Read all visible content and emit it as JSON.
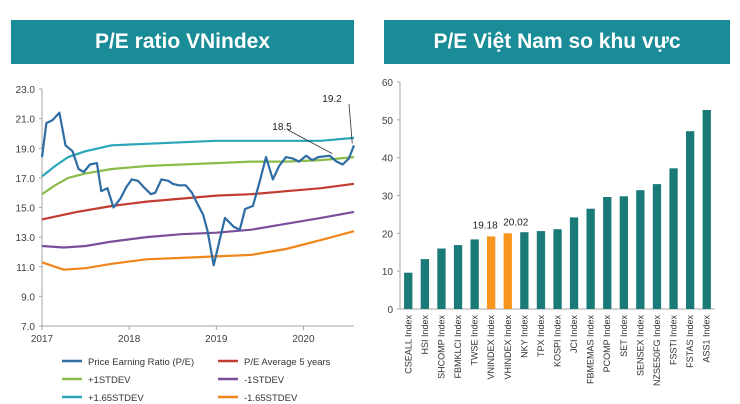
{
  "left_panel": {
    "title": "P/E ratio VNindex"
  },
  "right_panel": {
    "title": "P/E Việt Nam so khu vực"
  },
  "chart_data": [
    {
      "type": "line",
      "title": "P/E ratio VNindex",
      "x_ticks": [
        "2017",
        "2018",
        "2019",
        "2020"
      ],
      "x_tick_values": [
        2017,
        2018,
        2019,
        2020
      ],
      "xlim": [
        2017,
        2020.58
      ],
      "ylim": [
        7.0,
        23.0
      ],
      "y_ticks": [
        "23.0",
        "21.0",
        "19.0",
        "17.0",
        "15.0",
        "13.0",
        "11.0",
        "9.0",
        "7.0"
      ],
      "y_tick_values": [
        23,
        21,
        19,
        17,
        15,
        13,
        11,
        9,
        7
      ],
      "annotations": [
        {
          "text": "18.5",
          "x": 2020.33,
          "y": 18.5
        },
        {
          "text": "19.2",
          "x": 2020.56,
          "y": 19.2
        }
      ],
      "series": [
        {
          "name": "Price Earning Ratio (P/E)",
          "color": "#2e6ca4",
          "points": [
            [
              2017.0,
              18.4
            ],
            [
              2017.05,
              20.7
            ],
            [
              2017.12,
              20.9
            ],
            [
              2017.2,
              21.4
            ],
            [
              2017.27,
              19.2
            ],
            [
              2017.35,
              18.8
            ],
            [
              2017.42,
              17.6
            ],
            [
              2017.48,
              17.4
            ],
            [
              2017.55,
              17.9
            ],
            [
              2017.63,
              18.0
            ],
            [
              2017.68,
              16.1
            ],
            [
              2017.75,
              16.3
            ],
            [
              2017.82,
              15.0
            ],
            [
              2017.9,
              15.6
            ],
            [
              2017.97,
              16.4
            ],
            [
              2018.03,
              16.9
            ],
            [
              2018.1,
              16.8
            ],
            [
              2018.18,
              16.3
            ],
            [
              2018.25,
              15.9
            ],
            [
              2018.3,
              16.0
            ],
            [
              2018.37,
              16.9
            ],
            [
              2018.45,
              16.8
            ],
            [
              2018.5,
              16.6
            ],
            [
              2018.57,
              16.5
            ],
            [
              2018.65,
              16.5
            ],
            [
              2018.72,
              16.0
            ],
            [
              2018.78,
              15.3
            ],
            [
              2018.85,
              14.5
            ],
            [
              2018.9,
              13.4
            ],
            [
              2018.97,
              11.1
            ],
            [
              2019.03,
              12.6
            ],
            [
              2019.1,
              14.3
            ],
            [
              2019.2,
              13.7
            ],
            [
              2019.27,
              13.5
            ],
            [
              2019.33,
              14.9
            ],
            [
              2019.42,
              15.1
            ],
            [
              2019.5,
              16.8
            ],
            [
              2019.57,
              18.4
            ],
            [
              2019.65,
              16.9
            ],
            [
              2019.72,
              17.8
            ],
            [
              2019.8,
              18.4
            ],
            [
              2019.88,
              18.3
            ],
            [
              2019.95,
              18.1
            ],
            [
              2020.03,
              18.5
            ],
            [
              2020.1,
              18.2
            ],
            [
              2020.17,
              18.4
            ],
            [
              2020.3,
              18.5
            ],
            [
              2020.38,
              18.1
            ],
            [
              2020.45,
              17.9
            ],
            [
              2020.52,
              18.3
            ],
            [
              2020.58,
              19.2
            ]
          ]
        },
        {
          "name": "P/E Average 5 years",
          "color": "#c23b30",
          "points": [
            [
              2017.0,
              14.2
            ],
            [
              2017.4,
              14.7
            ],
            [
              2017.8,
              15.1
            ],
            [
              2018.2,
              15.4
            ],
            [
              2018.6,
              15.6
            ],
            [
              2019.0,
              15.8
            ],
            [
              2019.4,
              15.9
            ],
            [
              2019.8,
              16.1
            ],
            [
              2020.2,
              16.3
            ],
            [
              2020.58,
              16.6
            ]
          ]
        },
        {
          "name": "+1STDEV",
          "color": "#8bbb4a",
          "points": [
            [
              2017.0,
              15.9
            ],
            [
              2017.15,
              16.5
            ],
            [
              2017.3,
              17.0
            ],
            [
              2017.5,
              17.3
            ],
            [
              2017.8,
              17.6
            ],
            [
              2018.2,
              17.8
            ],
            [
              2018.6,
              17.9
            ],
            [
              2019.0,
              18.0
            ],
            [
              2019.4,
              18.1
            ],
            [
              2019.8,
              18.1
            ],
            [
              2020.2,
              18.2
            ],
            [
              2020.58,
              18.4
            ]
          ]
        },
        {
          "name": "-1STDEV",
          "color": "#7b4e9a",
          "points": [
            [
              2017.0,
              12.4
            ],
            [
              2017.25,
              12.3
            ],
            [
              2017.5,
              12.4
            ],
            [
              2017.8,
              12.7
            ],
            [
              2018.2,
              13.0
            ],
            [
              2018.6,
              13.2
            ],
            [
              2019.0,
              13.3
            ],
            [
              2019.4,
              13.5
            ],
            [
              2019.8,
              13.9
            ],
            [
              2020.2,
              14.3
            ],
            [
              2020.58,
              14.7
            ]
          ]
        },
        {
          "name": "+1.65STDEV",
          "color": "#2aa6b9",
          "points": [
            [
              2017.0,
              17.1
            ],
            [
              2017.15,
              17.8
            ],
            [
              2017.3,
              18.4
            ],
            [
              2017.5,
              18.8
            ],
            [
              2017.8,
              19.2
            ],
            [
              2018.2,
              19.3
            ],
            [
              2018.6,
              19.4
            ],
            [
              2019.0,
              19.5
            ],
            [
              2019.4,
              19.5
            ],
            [
              2019.8,
              19.5
            ],
            [
              2020.2,
              19.5
            ],
            [
              2020.58,
              19.7
            ]
          ]
        },
        {
          "name": "-1.65STDEV",
          "color": "#f0861a",
          "points": [
            [
              2017.0,
              11.3
            ],
            [
              2017.25,
              10.8
            ],
            [
              2017.5,
              10.9
            ],
            [
              2017.8,
              11.2
            ],
            [
              2018.2,
              11.5
            ],
            [
              2018.6,
              11.6
            ],
            [
              2019.0,
              11.7
            ],
            [
              2019.4,
              11.8
            ],
            [
              2019.8,
              12.2
            ],
            [
              2020.2,
              12.8
            ],
            [
              2020.58,
              13.4
            ]
          ]
        }
      ]
    },
    {
      "type": "bar",
      "title": "P/E Việt Nam so khu vực",
      "ylim": [
        0,
        60
      ],
      "y_ticks": [
        "60",
        "50",
        "40",
        "30",
        "20",
        "10",
        "0"
      ],
      "y_tick_values": [
        60,
        50,
        40,
        30,
        20,
        10,
        0
      ],
      "categories": [
        "CSEALL Index",
        "HSI Index",
        "SHCOMP Index",
        "FBMKLCI Index",
        "TWSE Index",
        "VNINDEX Index",
        "VHINDEX Index",
        "NKY Index",
        "TPX Index",
        "KOSPI Index",
        "JCI Index",
        "FBMEMAS Index",
        "PCOMP Index",
        "SET Index",
        "SENSEX Index",
        "NZSE50FG Index",
        "FSSTI Index",
        "FSTAS Index",
        "ASS1 Index"
      ],
      "values": [
        9.6,
        13.2,
        16.0,
        16.9,
        18.4,
        19.18,
        20.02,
        20.3,
        20.6,
        21.1,
        24.2,
        26.5,
        29.6,
        29.8,
        31.4,
        33.0,
        37.2,
        47.0,
        52.6
      ],
      "colors": [
        "#1a7a78",
        "#1a7a78",
        "#1a7a78",
        "#1a7a78",
        "#1a7a78",
        "#f7941d",
        "#f7941d",
        "#1a7a78",
        "#1a7a78",
        "#1a7a78",
        "#1a7a78",
        "#1a7a78",
        "#1a7a78",
        "#1a7a78",
        "#1a7a78",
        "#1a7a78",
        "#1a7a78",
        "#1a7a78",
        "#1a7a78"
      ],
      "data_labels": [
        {
          "index": 5,
          "text": "19.18"
        },
        {
          "index": 6,
          "text": "20.02"
        }
      ]
    }
  ]
}
